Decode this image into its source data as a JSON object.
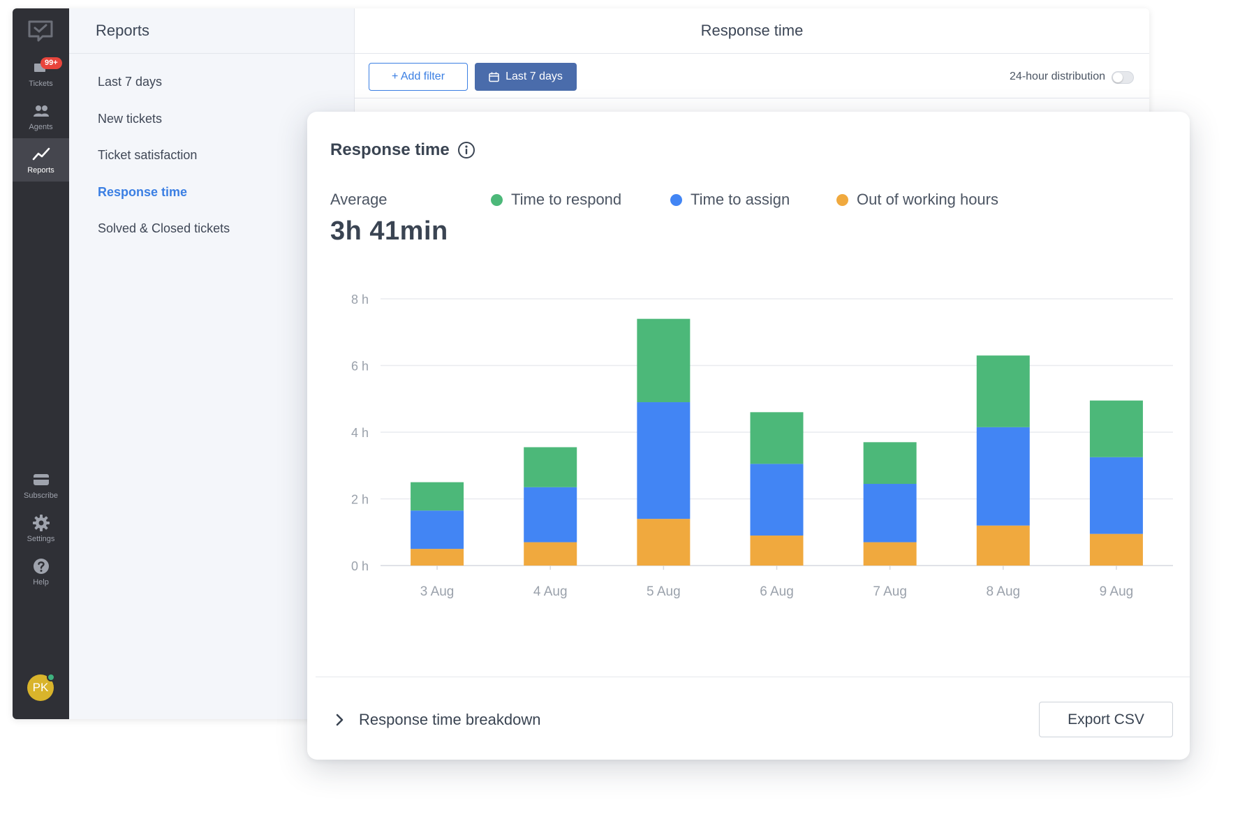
{
  "rail": {
    "tickets_badge": "99+",
    "items": [
      {
        "label": "Tickets",
        "icon": "ticket-icon"
      },
      {
        "label": "Agents",
        "icon": "agents-icon"
      },
      {
        "label": "Reports",
        "icon": "chart-line-icon"
      },
      {
        "label": "Subscribe",
        "icon": "card-icon"
      },
      {
        "label": "Settings",
        "icon": "gear-icon"
      },
      {
        "label": "Help",
        "icon": "help-icon"
      }
    ],
    "avatar_initials": "PK"
  },
  "sidepanel": {
    "title": "Reports",
    "items": [
      {
        "label": "Last 7 days"
      },
      {
        "label": "New tickets"
      },
      {
        "label": "Ticket satisfaction"
      },
      {
        "label": "Response time"
      },
      {
        "label": "Solved & Closed tickets"
      }
    ],
    "active_item": "Response time"
  },
  "main": {
    "title": "Response time",
    "add_filter_label": "+ Add filter",
    "date_filter_label": "Last 7 days",
    "distribution_label": "24-hour distribution",
    "distribution_enabled": false
  },
  "card": {
    "title": "Response time",
    "average_label": "Average",
    "average_value": "3h 41min",
    "breakdown_label": "Response time breakdown",
    "export_label": "Export CSV"
  },
  "colors": {
    "respond": "#4cb879",
    "assign": "#4285f4",
    "out_of_hours": "#f0a93e",
    "accent": "#3b7fe3",
    "rail": "#2f3036"
  },
  "chart_data": {
    "type": "bar",
    "stacked": true,
    "categories": [
      "3 Aug",
      "4 Aug",
      "5 Aug",
      "6 Aug",
      "7 Aug",
      "8 Aug",
      "9 Aug"
    ],
    "series": [
      {
        "name": "Out of working hours",
        "color": "#f0a93e",
        "values": [
          0.5,
          0.7,
          1.4,
          0.9,
          0.7,
          1.2,
          0.95
        ]
      },
      {
        "name": "Time to assign",
        "color": "#4285f4",
        "values": [
          1.15,
          1.65,
          3.5,
          2.15,
          1.75,
          2.95,
          2.3
        ]
      },
      {
        "name": "Time to respond",
        "color": "#4cb879",
        "values": [
          0.85,
          1.2,
          2.5,
          1.55,
          1.25,
          2.15,
          1.7
        ]
      }
    ],
    "y_ticks": [
      "0 h",
      "2 h",
      "4 h",
      "6 h",
      "8 h"
    ],
    "ylim": [
      0,
      8
    ],
    "grid": true,
    "legend_placement": "top"
  }
}
